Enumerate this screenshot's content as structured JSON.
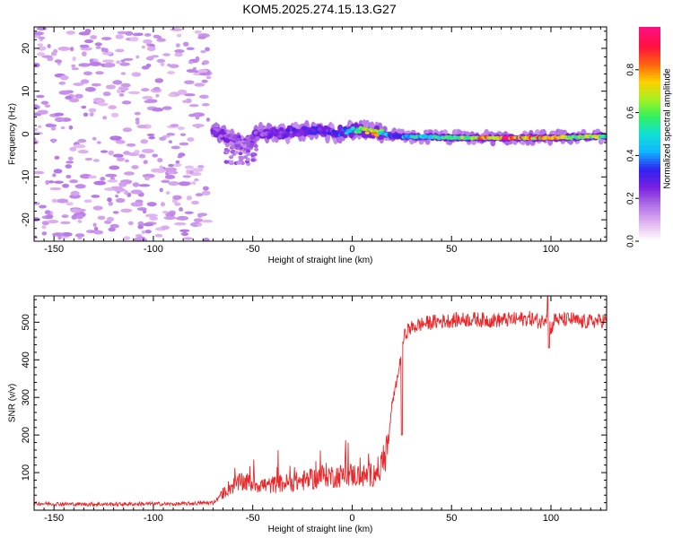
{
  "title": "KOM5.2025.274.15.13.G27",
  "chart_data": [
    {
      "type": "heatmap",
      "xlabel": "Height of straight line (km)",
      "ylabel": "Frequency (Hz)",
      "xlim": [
        -160,
        128
      ],
      "ylim": [
        -25,
        25
      ],
      "x_ticks": [
        -150,
        -100,
        -50,
        0,
        50,
        100
      ],
      "y_ticks": [
        -20,
        -10,
        0,
        10,
        20
      ],
      "grid": false,
      "colorbar": {
        "label": "Normalized spectral amplitude",
        "range": [
          0,
          1
        ],
        "ticks": [
          0.0,
          0.2,
          0.4,
          0.6,
          0.8
        ],
        "colors": [
          "#ffffff",
          "#e0b4f0",
          "#b070e6",
          "#7a20e0",
          "#3020f0",
          "#10b4ff",
          "#10e0d8",
          "#30f060",
          "#a8f020",
          "#ffd000",
          "#ff6010",
          "#ff1040",
          "#ff1080"
        ]
      },
      "ridge": {
        "description_points": [
          {
            "x": -70,
            "f": 1.0,
            "amp": 0.22
          },
          {
            "x": -60,
            "f": -1.0,
            "amp": 0.22
          },
          {
            "x": -55,
            "f": -2.5,
            "amp": 0.15
          },
          {
            "x": -45,
            "f": 0.5,
            "amp": 0.22
          },
          {
            "x": -35,
            "f": 0.2,
            "amp": 0.25
          },
          {
            "x": -20,
            "f": 0.8,
            "amp": 0.3
          },
          {
            "x": -10,
            "f": 0.2,
            "amp": 0.28
          },
          {
            "x": 0,
            "f": 0.9,
            "amp": 0.45
          },
          {
            "x": 10,
            "f": 0.8,
            "amp": 0.75
          },
          {
            "x": 20,
            "f": -0.5,
            "amp": 0.35
          },
          {
            "x": 30,
            "f": -0.6,
            "amp": 0.5
          },
          {
            "x": 50,
            "f": -0.8,
            "amp": 0.55
          },
          {
            "x": 75,
            "f": -0.9,
            "amp": 0.9
          },
          {
            "x": 100,
            "f": -0.9,
            "amp": 0.75
          },
          {
            "x": 128,
            "f": -0.5,
            "amp": 0.6
          }
        ],
        "noise_region_x": [
          -160,
          -72
        ]
      }
    },
    {
      "type": "line",
      "xlabel": "Height of straight line (km)",
      "ylabel": "SNR (v/v)",
      "xlim": [
        -160,
        128
      ],
      "ylim": [
        0,
        570
      ],
      "x_ticks": [
        -150,
        -100,
        -50,
        0,
        50,
        100
      ],
      "y_ticks": [
        100,
        200,
        300,
        400,
        500
      ],
      "grid": false,
      "series": [
        {
          "color": "#e8282a",
          "x": [
            -160,
            -140,
            -120,
            -100,
            -90,
            -80,
            -70,
            -66,
            -62,
            -58,
            -54,
            -50,
            -46,
            -42,
            -38,
            -34,
            -30,
            -26,
            -22,
            -18,
            -14,
            -10,
            -6,
            -2,
            2,
            6,
            10,
            14,
            18,
            20,
            22,
            24,
            25,
            26,
            28,
            30,
            35,
            40,
            50,
            60,
            70,
            80,
            90,
            95,
            98,
            100,
            102,
            105,
            110,
            115,
            120,
            128
          ],
          "y": [
            18,
            16,
            16,
            17,
            16,
            18,
            20,
            40,
            60,
            70,
            75,
            72,
            68,
            65,
            70,
            72,
            74,
            78,
            80,
            85,
            95,
            90,
            92,
            95,
            93,
            90,
            95,
            110,
            170,
            280,
            330,
            390,
            430,
            460,
            480,
            485,
            495,
            500,
            505,
            508,
            505,
            507,
            510,
            500,
            520,
            480,
            510,
            505,
            508,
            500,
            502,
            505
          ]
        }
      ]
    }
  ]
}
